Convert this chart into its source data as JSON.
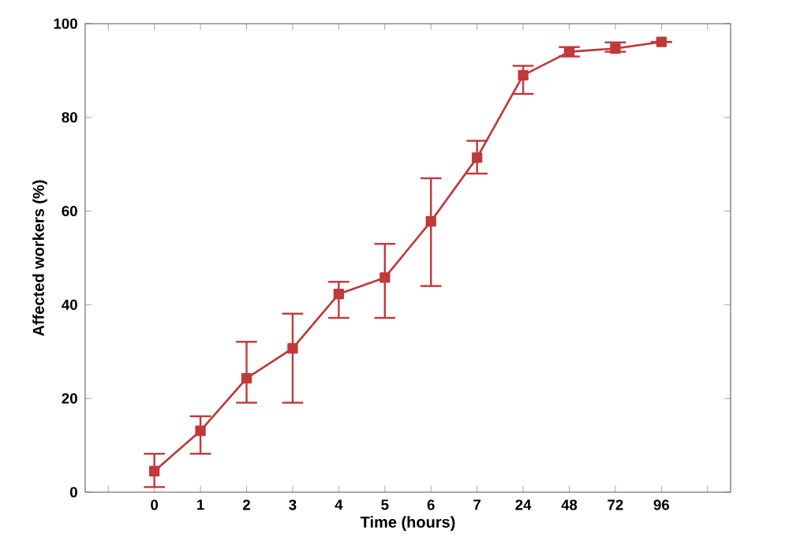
{
  "chart_data": {
    "type": "line",
    "xlabel": "Time (hours)",
    "ylabel": "Affected workers (%)",
    "categories": [
      "0",
      "1",
      "2",
      "3",
      "4",
      "5",
      "6",
      "7",
      "24",
      "48",
      "72",
      "96"
    ],
    "values": [
      4.5,
      13.1,
      24.3,
      30.7,
      42.3,
      45.8,
      57.8,
      71.4,
      89,
      94,
      94.7,
      96.1
    ],
    "errors": [
      [
        1.1,
        8.2
      ],
      [
        8.2,
        16.2
      ],
      [
        19.1,
        32.1
      ],
      [
        19.1,
        38.1
      ],
      [
        37.2,
        44.9
      ],
      [
        37.2,
        53
      ],
      [
        44,
        67
      ],
      [
        68,
        75
      ],
      [
        85,
        91
      ],
      [
        93,
        95
      ],
      [
        94,
        96
      ],
      null
    ],
    "color": "#c0393b",
    "ylim": [
      0,
      100
    ],
    "yticks": [
      0,
      20,
      40,
      60,
      80,
      100
    ],
    "grid": false,
    "marker": "square",
    "line_style": "solid"
  }
}
